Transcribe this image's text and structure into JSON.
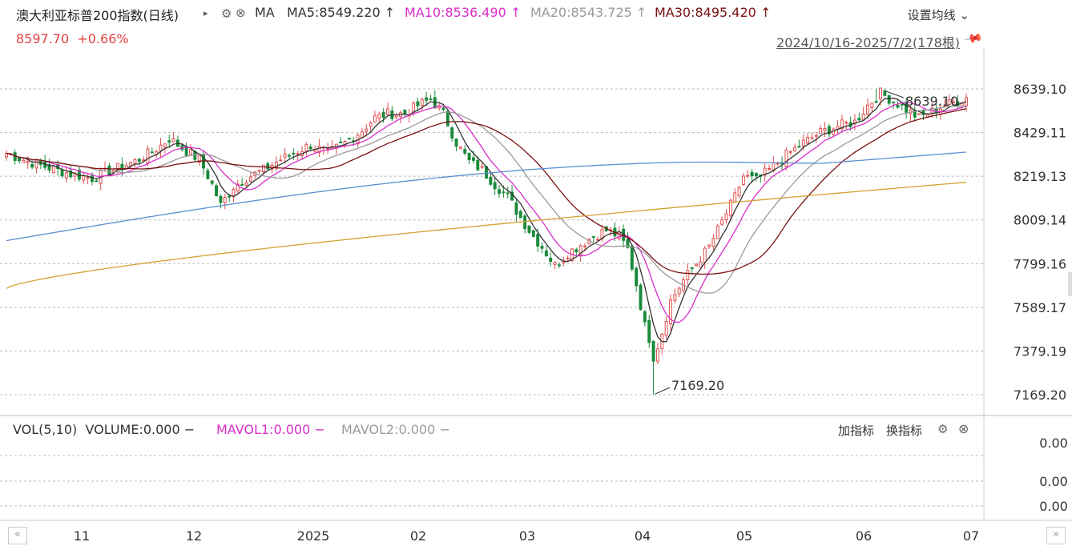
{
  "header": {
    "title": "澳大利亚标普200指数(日线)",
    "ma_label": "MA",
    "ma5": "MA5:8549.220",
    "ma10": "MA10:8536.490",
    "ma20": "MA20:8543.725",
    "ma30": "MA30:8495.420",
    "arrow": "↑",
    "settings": "设置均线",
    "price": "8597.70",
    "change": "+0.66%",
    "range": "2024/10/16-2025/7/2(178根)"
  },
  "volume_panel": {
    "title": "VOL(5,10)",
    "volume": "VOLUME:0.000",
    "mavol1": "MAVOL1:0.000",
    "mavol2": "MAVOL2:0.000",
    "dash": "−",
    "add_indicator": "加指标",
    "switch_indicator": "换指标",
    "y_ticks": [
      "0.00",
      "0.00",
      "0.00"
    ]
  },
  "colors": {
    "up": "#e05050",
    "down": "#1a8a3a",
    "ma5": "#333333",
    "ma10": "#d92ec9",
    "ma20": "#9a9a9a",
    "ma30": "#7a1010",
    "ma_long1": "#5a8fd0",
    "ma_long2": "#d4a030"
  },
  "chart_data": {
    "type": "candlestick",
    "y_ticks": [
      "8639.10",
      "8429.11",
      "8219.13",
      "8009.14",
      "7799.16",
      "7589.17",
      "7379.19",
      "7169.20"
    ],
    "ylim": [
      7169.2,
      8639.1
    ],
    "x_tick_labels": [
      "11",
      "12",
      "2025",
      "02",
      "03",
      "04",
      "05",
      "06",
      "07"
    ],
    "annotations": [
      {
        "text": "8639.10",
        "type": "high"
      },
      {
        "text": "7169.20",
        "type": "low"
      }
    ],
    "close_path": [
      [
        0,
        8330
      ],
      [
        5,
        8290
      ],
      [
        10,
        8260
      ],
      [
        15,
        8230
      ],
      [
        20,
        8210
      ],
      [
        25,
        8250
      ],
      [
        30,
        8290
      ],
      [
        35,
        8350
      ],
      [
        38,
        8400
      ],
      [
        42,
        8340
      ],
      [
        45,
        8300
      ],
      [
        48,
        8180
      ],
      [
        50,
        8080
      ],
      [
        53,
        8170
      ],
      [
        56,
        8210
      ],
      [
        60,
        8250
      ],
      [
        64,
        8300
      ],
      [
        68,
        8340
      ],
      [
        71,
        8370
      ],
      [
        75,
        8330
      ],
      [
        79,
        8380
      ],
      [
        83,
        8440
      ],
      [
        86,
        8500
      ],
      [
        89,
        8520
      ],
      [
        93,
        8520
      ],
      [
        96,
        8560
      ],
      [
        99,
        8590
      ],
      [
        102,
        8520
      ],
      [
        105,
        8380
      ],
      [
        108,
        8290
      ],
      [
        111,
        8250
      ],
      [
        114,
        8180
      ],
      [
        117,
        8120
      ],
      [
        120,
        8020
      ],
      [
        123,
        7930
      ],
      [
        125,
        7880
      ],
      [
        128,
        7790
      ],
      [
        131,
        7850
      ],
      [
        134,
        7890
      ],
      [
        137,
        7930
      ],
      [
        140,
        7960
      ],
      [
        143,
        7930
      ],
      [
        145,
        7870
      ],
      [
        147,
        7700
      ],
      [
        149,
        7500
      ],
      [
        151,
        7340
      ],
      [
        153,
        7470
      ],
      [
        155,
        7620
      ],
      [
        158,
        7720
      ],
      [
        161,
        7800
      ],
      [
        164,
        7880
      ],
      [
        167,
        8000
      ],
      [
        170,
        8120
      ],
      [
        172,
        8220
      ],
      [
        175,
        8200
      ],
      [
        178,
        8250
      ],
      [
        182,
        8320
      ],
      [
        186,
        8380
      ],
      [
        190,
        8430
      ],
      [
        194,
        8460
      ],
      [
        198,
        8480
      ],
      [
        201,
        8560
      ],
      [
        204,
        8620
      ],
      [
        207,
        8580
      ],
      [
        210,
        8540
      ],
      [
        213,
        8500
      ],
      [
        216,
        8530
      ],
      [
        219,
        8560
      ],
      [
        222,
        8580
      ],
      [
        224,
        8598
      ]
    ]
  }
}
